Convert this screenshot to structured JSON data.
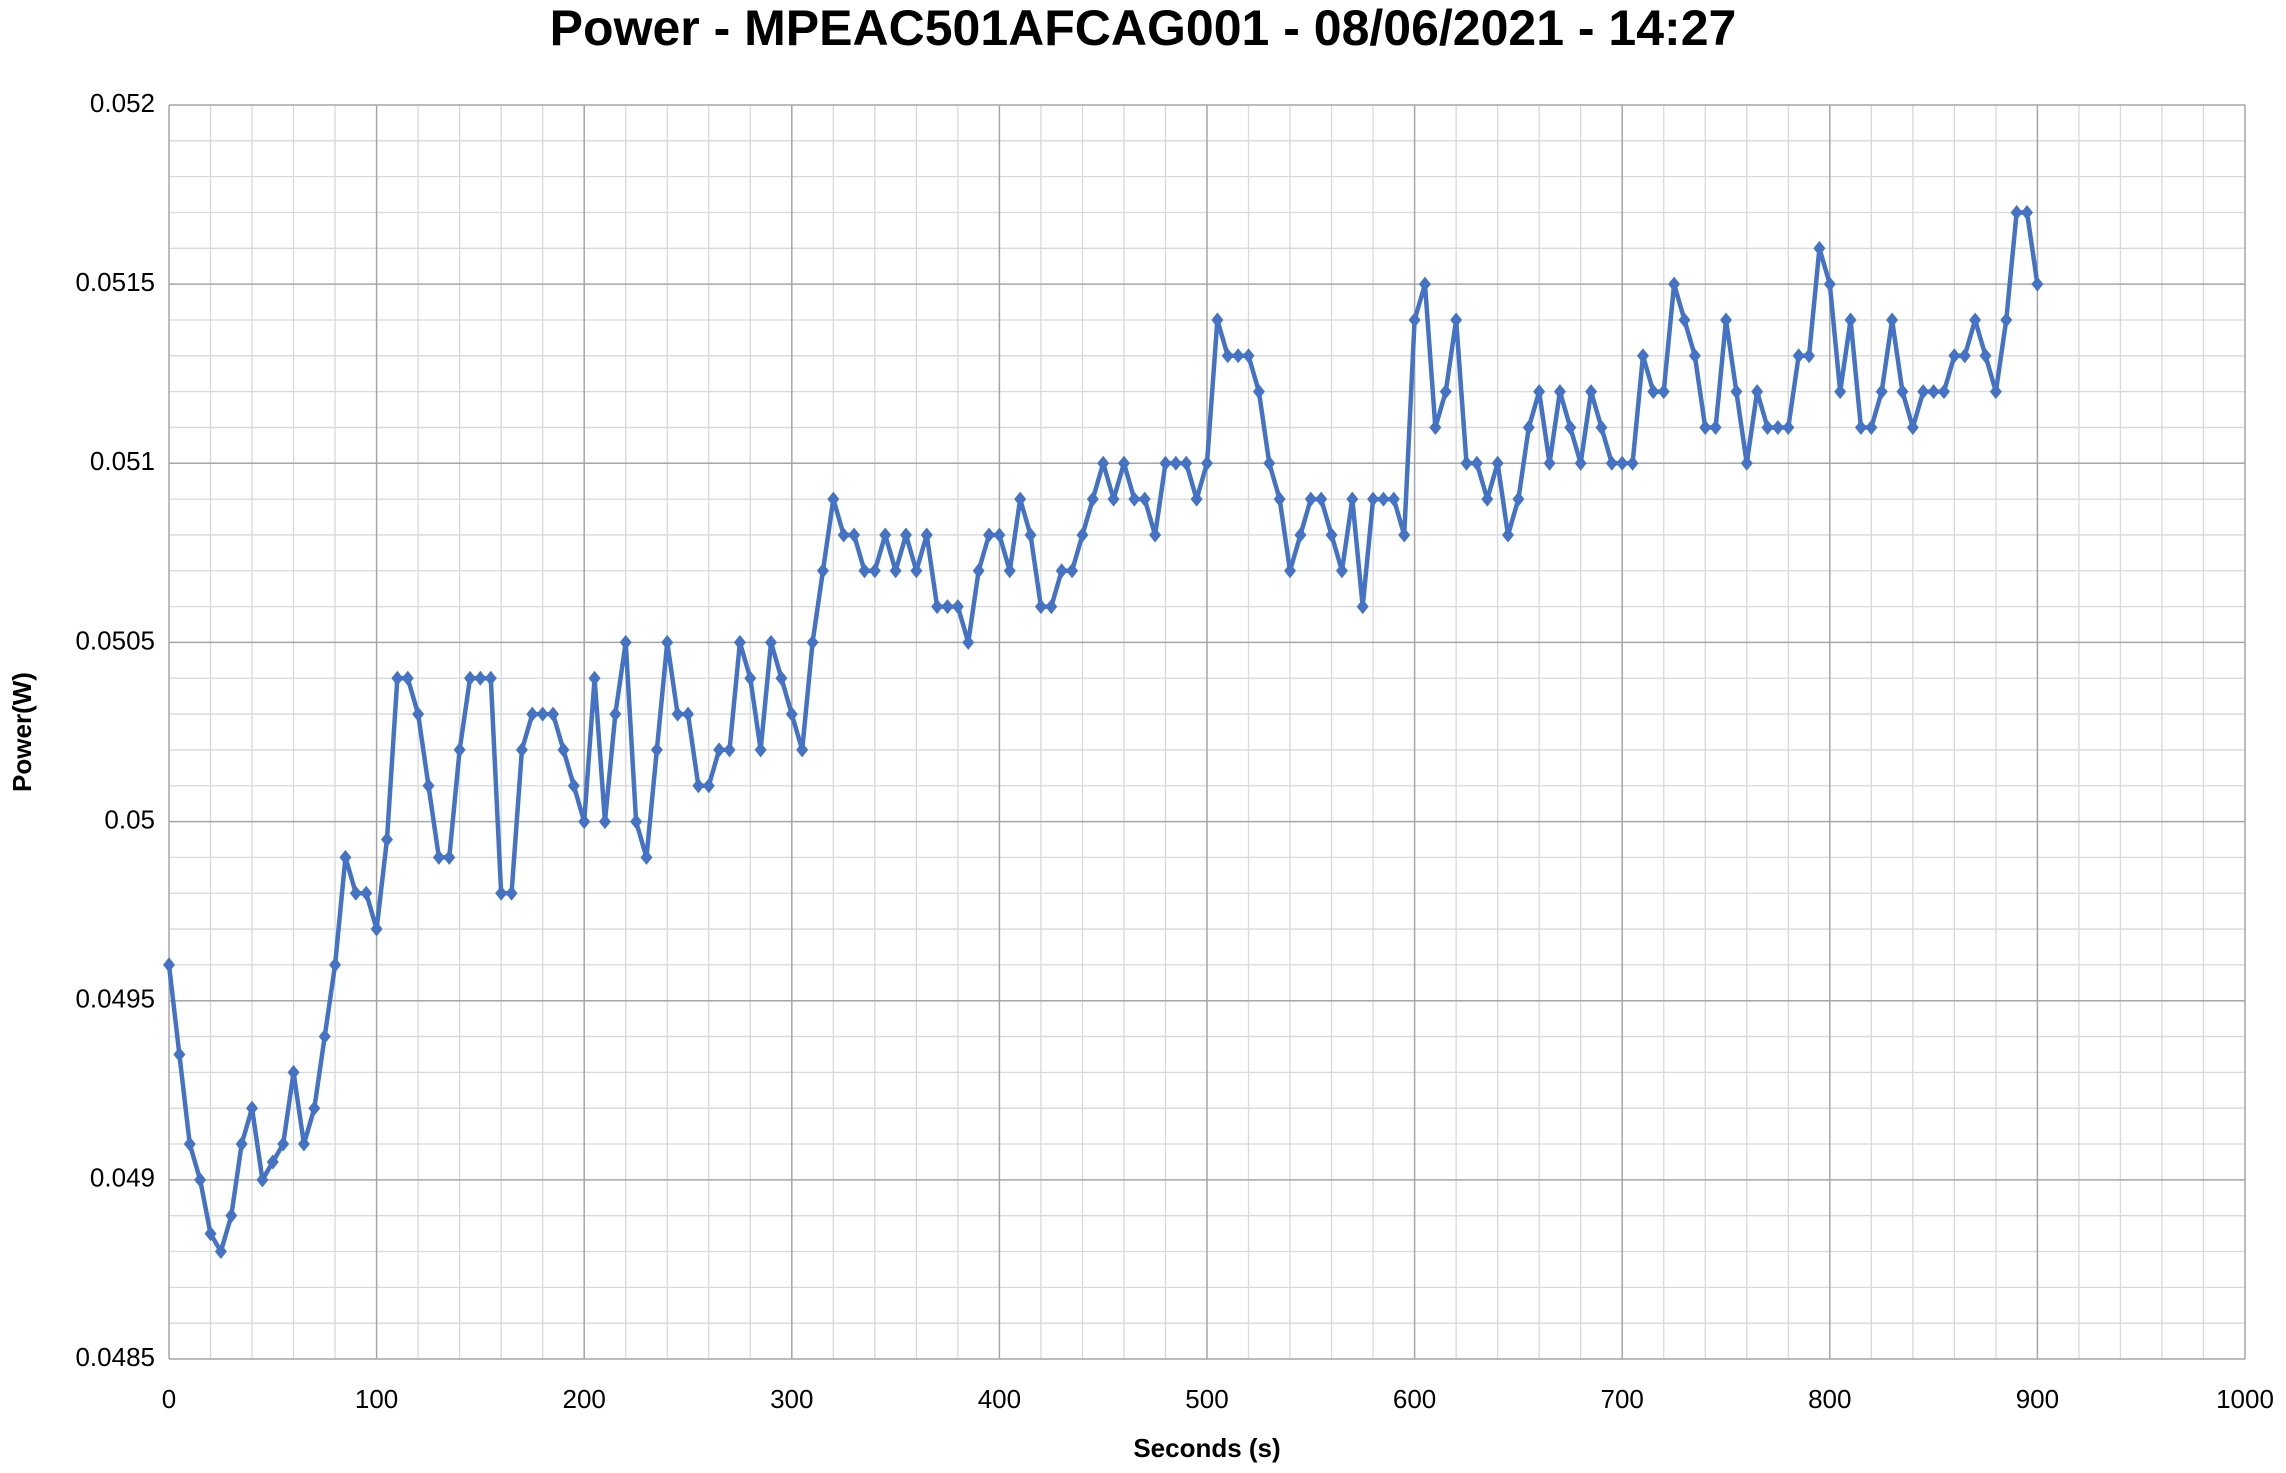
{
  "chart_data": {
    "type": "line",
    "title": "Power - MPEAC501AFCAG001 - 08/06/2021 - 14:27",
    "x_label": "Seconds (s)",
    "y_label": "Power(W)",
    "xlim": [
      0,
      1000
    ],
    "xticks": [
      0,
      100,
      200,
      300,
      400,
      500,
      600,
      700,
      800,
      900,
      1000
    ],
    "ylim": [
      0.0485,
      0.052
    ],
    "yticks": [
      0.0485,
      0.049,
      0.0495,
      0.05,
      0.0505,
      0.051,
      0.0515,
      0.052
    ],
    "grid": true,
    "minor_divisions": 5,
    "marker": "diamond",
    "x": [
      0,
      5,
      10,
      15,
      20,
      25,
      30,
      35,
      40,
      45,
      50,
      55,
      60,
      65,
      70,
      75,
      80,
      85,
      90,
      95,
      100,
      105,
      110,
      115,
      120,
      125,
      130,
      135,
      140,
      145,
      150,
      155,
      160,
      165,
      170,
      175,
      180,
      185,
      190,
      195,
      200,
      205,
      210,
      215,
      220,
      225,
      230,
      235,
      240,
      245,
      250,
      255,
      260,
      265,
      270,
      275,
      280,
      285,
      290,
      295,
      300,
      305,
      310,
      315,
      320,
      325,
      330,
      335,
      340,
      345,
      350,
      355,
      360,
      365,
      370,
      375,
      380,
      385,
      390,
      395,
      400,
      405,
      410,
      415,
      420,
      425,
      430,
      435,
      440,
      445,
      450,
      455,
      460,
      465,
      470,
      475,
      480,
      485,
      490,
      495,
      500,
      505,
      510,
      515,
      520,
      525,
      530,
      535,
      540,
      545,
      550,
      555,
      560,
      565,
      570,
      575,
      580,
      585,
      590,
      595,
      600,
      605,
      610,
      615,
      620,
      625,
      630,
      635,
      640,
      645,
      650,
      655,
      660,
      665,
      670,
      675,
      680,
      685,
      690,
      695,
      700,
      705,
      710,
      715,
      720,
      725,
      730,
      735,
      740,
      745,
      750,
      755,
      760,
      765,
      770,
      775,
      780,
      785,
      790,
      795,
      800,
      805,
      810,
      815,
      820,
      825,
      830,
      835,
      840,
      845,
      850,
      855,
      860,
      865,
      870,
      875,
      880,
      885,
      890,
      895,
      900
    ],
    "series": [
      {
        "name": "Power",
        "color": "#4472c4",
        "values": [
          0.0496,
          0.04935,
          0.0491,
          0.049,
          0.04885,
          0.0488,
          0.0489,
          0.0491,
          0.0492,
          0.049,
          0.04905,
          0.0491,
          0.0493,
          0.0491,
          0.0492,
          0.0494,
          0.0496,
          0.0499,
          0.0498,
          0.0498,
          0.0497,
          0.04995,
          0.0504,
          0.0504,
          0.0503,
          0.0501,
          0.0499,
          0.0499,
          0.0502,
          0.0504,
          0.0504,
          0.0504,
          0.0498,
          0.0498,
          0.0502,
          0.0503,
          0.0503,
          0.0503,
          0.0502,
          0.0501,
          0.05,
          0.0504,
          0.05,
          0.0503,
          0.0505,
          0.05,
          0.0499,
          0.0502,
          0.0505,
          0.0503,
          0.0503,
          0.0501,
          0.0501,
          0.0502,
          0.0502,
          0.0505,
          0.0504,
          0.0502,
          0.0505,
          0.0504,
          0.0503,
          0.0502,
          0.0505,
          0.0507,
          0.0509,
          0.0508,
          0.0508,
          0.0507,
          0.0507,
          0.0508,
          0.0507,
          0.0508,
          0.0507,
          0.0508,
          0.0506,
          0.0506,
          0.0506,
          0.0505,
          0.0507,
          0.0508,
          0.0508,
          0.0507,
          0.0509,
          0.0508,
          0.0506,
          0.0506,
          0.0507,
          0.0507,
          0.0508,
          0.0509,
          0.051,
          0.0509,
          0.051,
          0.0509,
          0.0509,
          0.0508,
          0.051,
          0.051,
          0.051,
          0.0509,
          0.051,
          0.0514,
          0.0513,
          0.0513,
          0.0513,
          0.0512,
          0.051,
          0.0509,
          0.0507,
          0.0508,
          0.0509,
          0.0509,
          0.0508,
          0.0507,
          0.0509,
          0.0506,
          0.0509,
          0.0509,
          0.0509,
          0.0508,
          0.0514,
          0.0515,
          0.0511,
          0.0512,
          0.0514,
          0.051,
          0.051,
          0.0509,
          0.051,
          0.0508,
          0.0509,
          0.0511,
          0.0512,
          0.051,
          0.0512,
          0.0511,
          0.051,
          0.0512,
          0.0511,
          0.051,
          0.051,
          0.051,
          0.0513,
          0.0512,
          0.0512,
          0.0515,
          0.0514,
          0.0513,
          0.0511,
          0.0511,
          0.0514,
          0.0512,
          0.051,
          0.0512,
          0.0511,
          0.0511,
          0.0511,
          0.0513,
          0.0513,
          0.0516,
          0.0515,
          0.0512,
          0.0514,
          0.0511,
          0.0511,
          0.0512,
          0.0514,
          0.0512,
          0.0511,
          0.0512,
          0.0512,
          0.0512,
          0.0513,
          0.0513,
          0.0514,
          0.0513,
          0.0512,
          0.0514,
          0.0517,
          0.0517,
          0.0515
        ]
      }
    ]
  }
}
